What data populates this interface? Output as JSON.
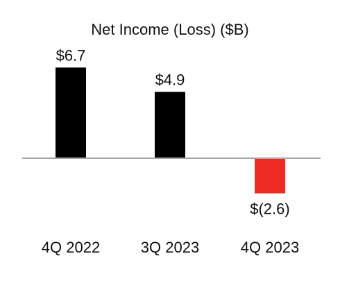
{
  "chart_data": {
    "type": "bar",
    "title": "Net Income (Loss) ($B)",
    "categories": [
      "4Q 2022",
      "3Q 2023",
      "4Q 2023"
    ],
    "values": [
      6.7,
      4.9,
      -2.6
    ],
    "value_labels": [
      "$6.7",
      "$4.9",
      "$(2.6)"
    ],
    "colors": [
      "#000000",
      "#000000",
      "#ee2a24"
    ],
    "baseline_color": "#a6a6a6",
    "xlabel": "",
    "ylabel": "",
    "grid": false,
    "legend": "none"
  }
}
